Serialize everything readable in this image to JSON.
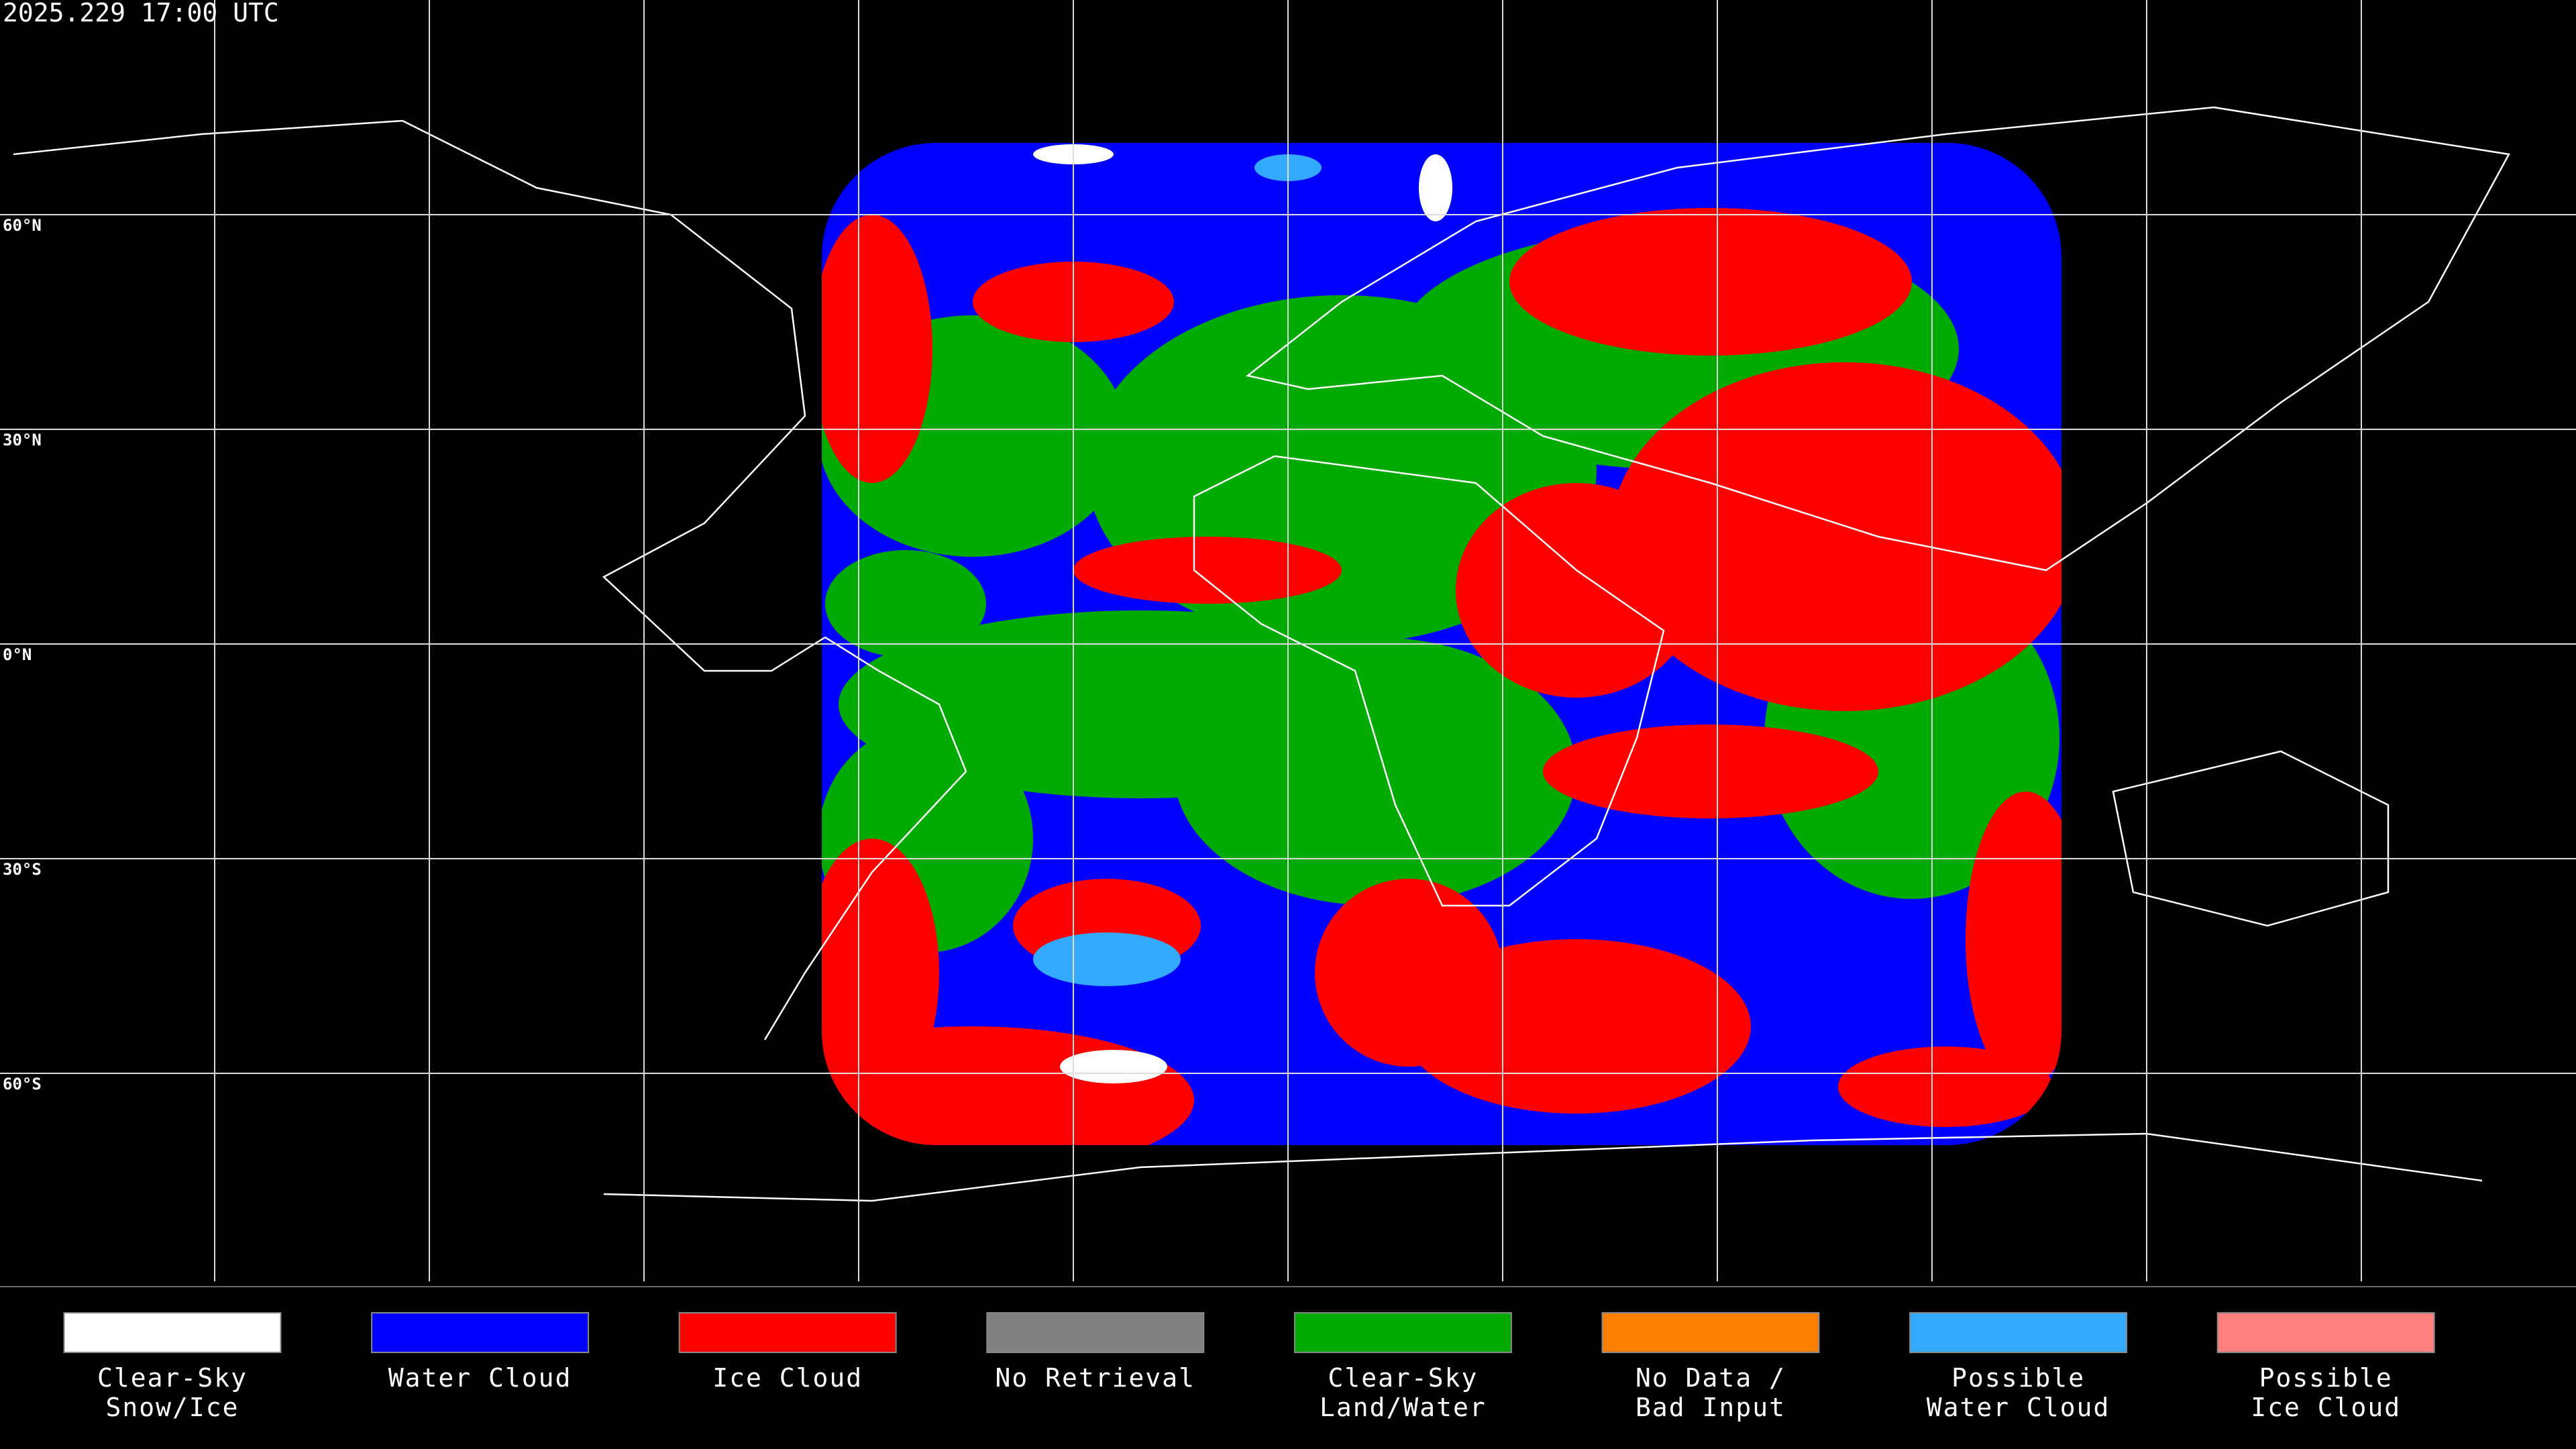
{
  "title": "2025.229 17:00 UTC",
  "latitude_lines": [
    {
      "value": 60,
      "label": "60°N"
    },
    {
      "value": 30,
      "label": "30°N"
    },
    {
      "value": 0,
      "label": "0°N"
    },
    {
      "value": -30,
      "label": "30°S"
    },
    {
      "value": -60,
      "label": "60°S"
    }
  ],
  "legend": [
    {
      "label": [
        "Clear-Sky",
        "Snow/Ice"
      ],
      "color": "#ffffff"
    },
    {
      "label": [
        "Water Cloud"
      ],
      "color": "#0000ff"
    },
    {
      "label": [
        "Ice Cloud"
      ],
      "color": "#ff0000"
    },
    {
      "label": [
        "No Retrieval"
      ],
      "color": "#808080"
    },
    {
      "label": [
        "Clear-Sky",
        "Land/Water"
      ],
      "color": "#00aa00"
    },
    {
      "label": [
        "No Data /",
        "Bad Input"
      ],
      "color": "#ff8000"
    },
    {
      "label": [
        "Possible",
        "Water Cloud"
      ],
      "color": "#33aaff"
    },
    {
      "label": [
        "Possible",
        "Ice Cloud"
      ],
      "color": "#ff7f7f"
    }
  ]
}
